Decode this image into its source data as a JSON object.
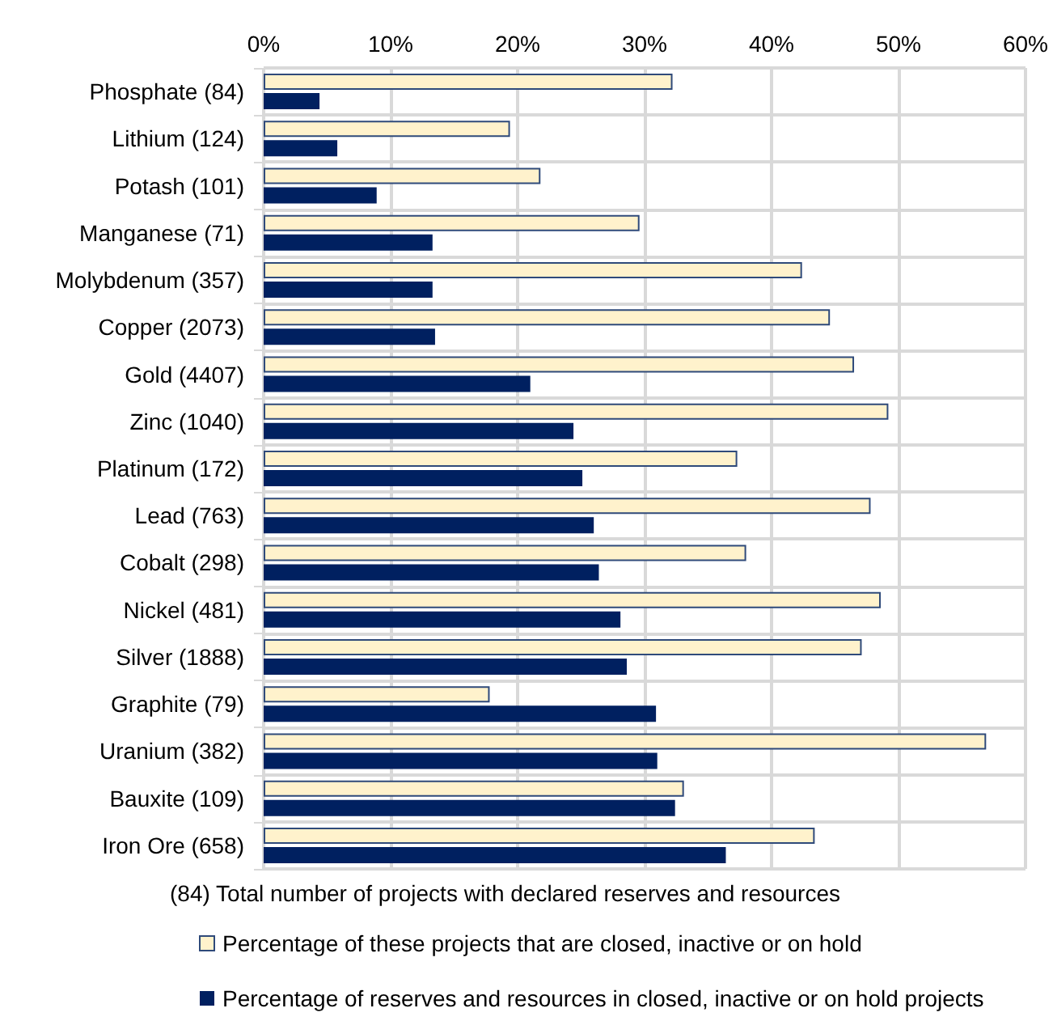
{
  "chart_data": {
    "type": "bar",
    "orientation": "horizontal",
    "categories": [
      "Phosphate (84)",
      "Lithium (124)",
      "Potash (101)",
      "Manganese (71)",
      "Molybdenum (357)",
      "Copper (2073)",
      "Gold (4407)",
      "Zinc (1040)",
      "Platinum (172)",
      "Lead (763)",
      "Cobalt (298)",
      "Nickel (481)",
      "Silver (1888)",
      "Graphite (79)",
      "Uranium (382)",
      "Bauxite (109)",
      "Iron Ore (658)"
    ],
    "series": [
      {
        "name": "Percentage of these projects that are closed, inactive or on hold",
        "color": "#fff2cc",
        "values": [
          32.2,
          19.4,
          21.8,
          29.6,
          42.4,
          44.6,
          46.5,
          49.2,
          37.3,
          47.8,
          38.0,
          48.6,
          47.1,
          17.8,
          56.9,
          33.1,
          43.4
        ]
      },
      {
        "name": "Percentage of reserves and resources in closed, inactive or on hold projects",
        "color": "#002060",
        "values": [
          4.4,
          5.8,
          8.9,
          13.3,
          13.3,
          13.5,
          21.0,
          24.4,
          25.1,
          26.0,
          26.4,
          28.1,
          28.6,
          30.9,
          31.0,
          32.4,
          36.4
        ]
      }
    ],
    "xlim": [
      0,
      60
    ],
    "xticks": [
      {
        "value": 0,
        "label": "0%"
      },
      {
        "value": 10,
        "label": "10%"
      },
      {
        "value": 20,
        "label": "20%"
      },
      {
        "value": 30,
        "label": "30%"
      },
      {
        "value": 40,
        "label": "40%"
      },
      {
        "value": 50,
        "label": "50%"
      },
      {
        "value": 60,
        "label": "60%"
      }
    ],
    "annotations": [
      "(84) Total number of projects with declared reserves and resources"
    ],
    "grid": true,
    "legend": "bottom"
  }
}
